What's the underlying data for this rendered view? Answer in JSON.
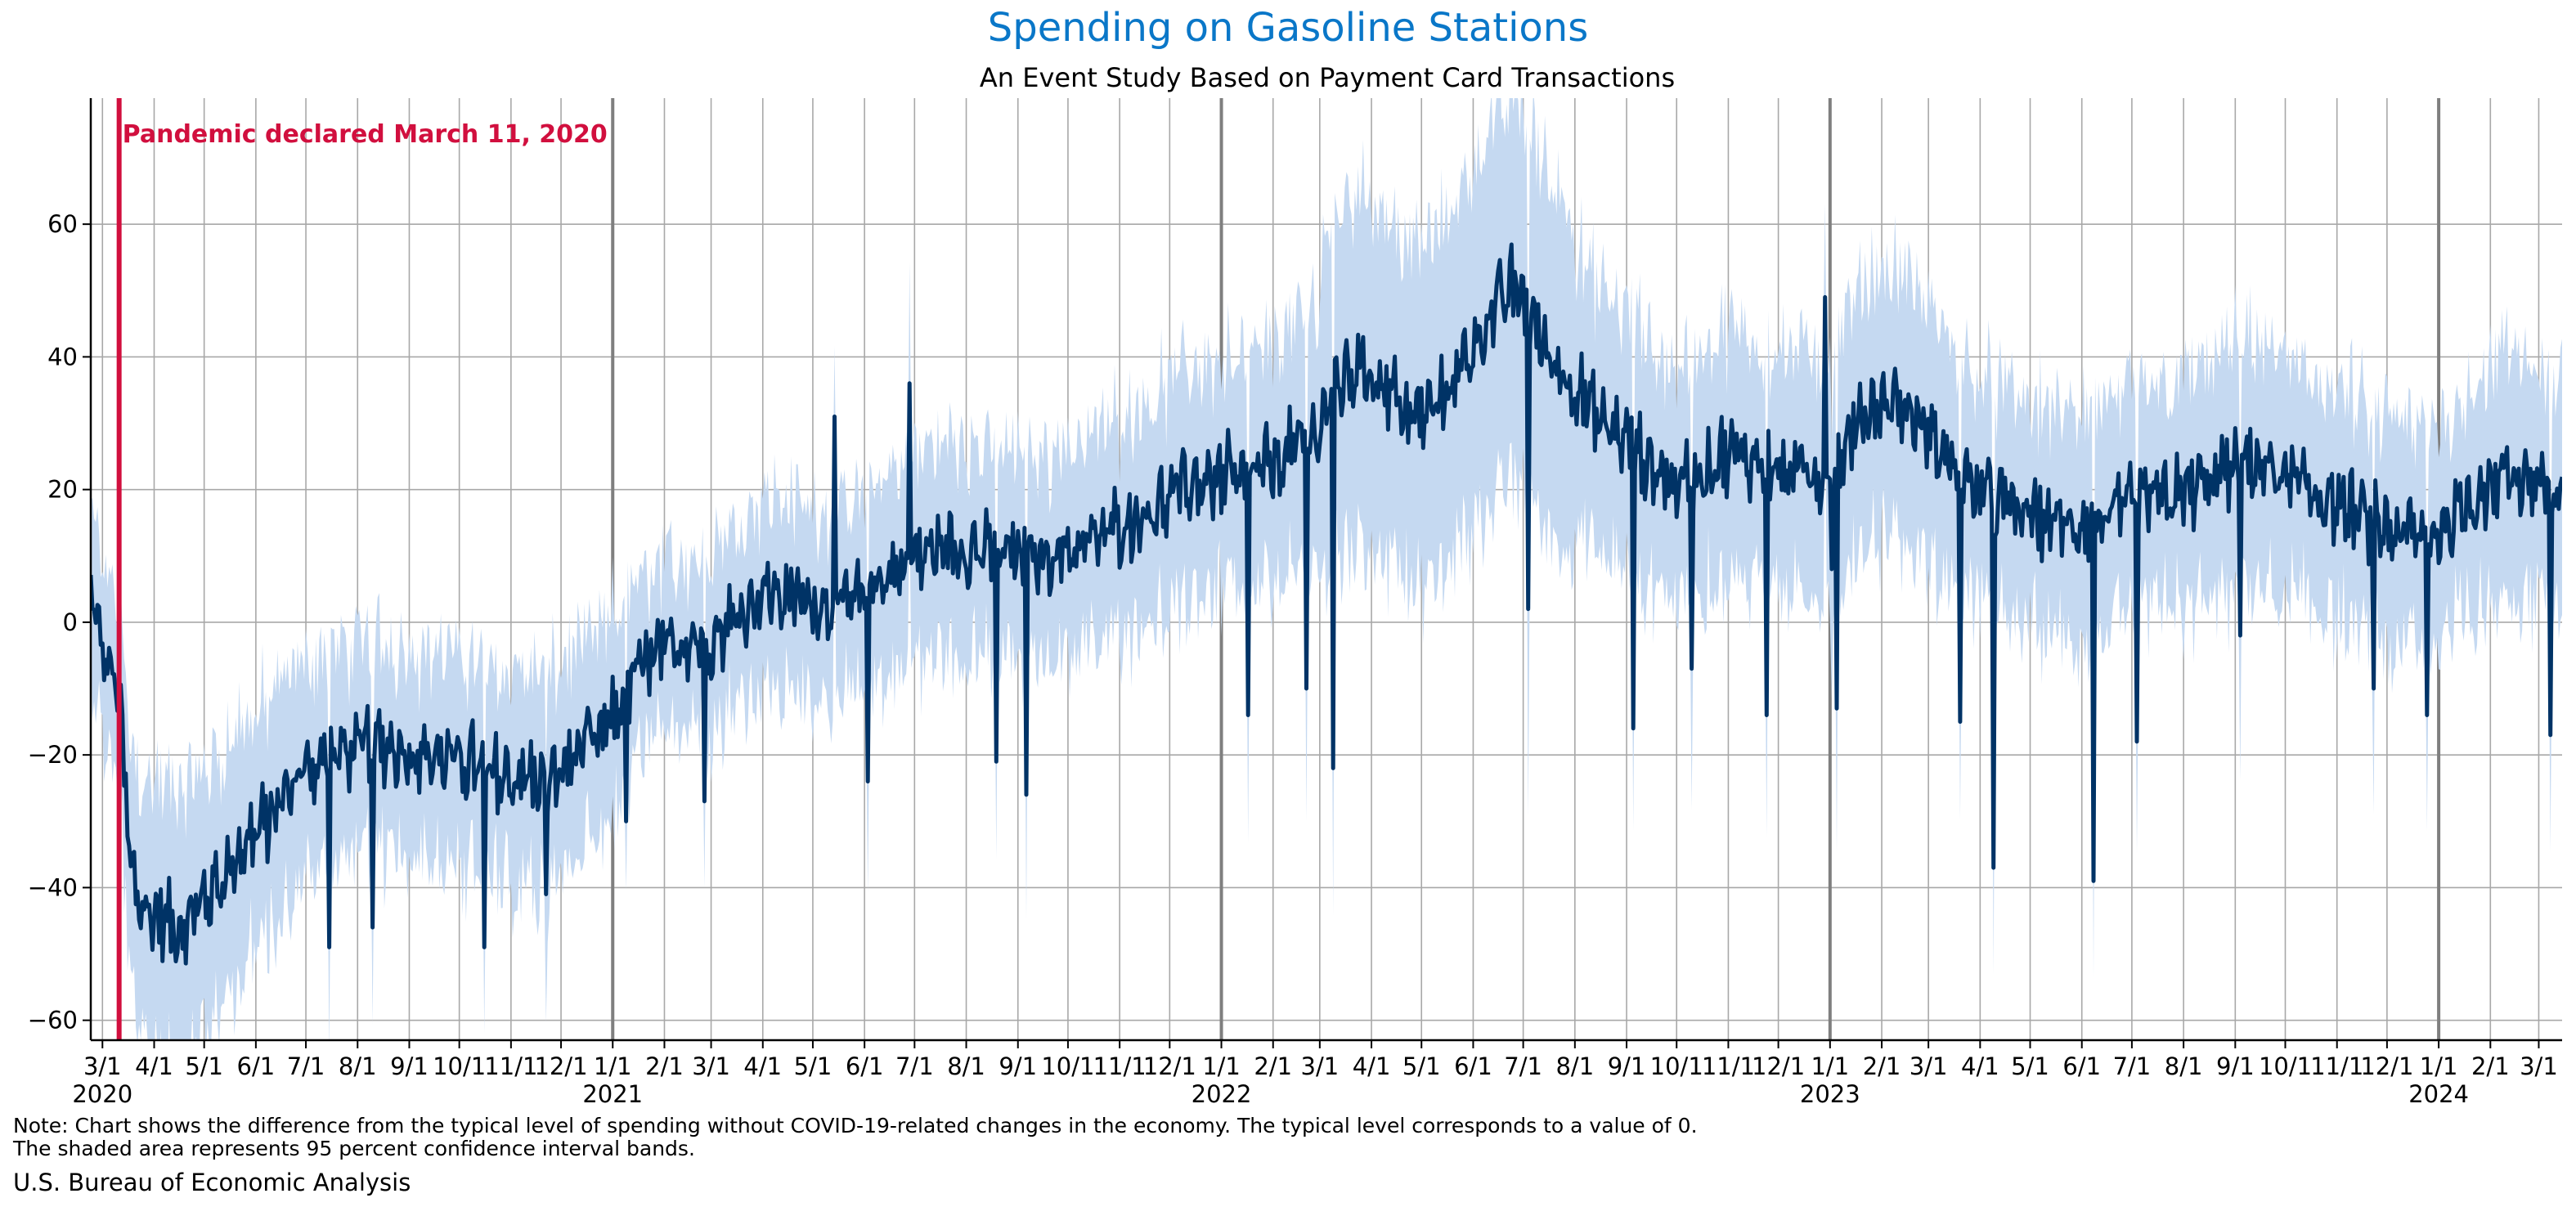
{
  "colors": {
    "title": "#0a77c8",
    "line": "#003366",
    "band": "#c5d9f1",
    "pandemic": "#d10f3e",
    "grid": "#a8a8a8",
    "year_line": "#7f7f7f"
  },
  "chart_data": {
    "type": "line",
    "title": "Spending on Gasoline Stations",
    "subtitle": "An Event Study Based on Payment Card Transactions",
    "xlabel": "",
    "ylabel": "",
    "x_range": [
      "2020-02-23",
      "2024-03-15"
    ],
    "ylim": [
      -63,
      79
    ],
    "yticks": [
      -60,
      -40,
      -20,
      0,
      20,
      40,
      60
    ],
    "grid": true,
    "x_tick_labels": [
      "3/1",
      "4/1",
      "5/1",
      "6/1",
      "7/1",
      "8/1",
      "9/1",
      "10/1",
      "11/1",
      "12/1",
      "1/1",
      "2/1",
      "3/1",
      "4/1",
      "5/1",
      "6/1",
      "7/1",
      "8/1",
      "9/1",
      "10/1",
      "11/1",
      "12/1",
      "1/1",
      "2/1",
      "3/1",
      "4/1",
      "5/1",
      "6/1",
      "7/1",
      "8/1",
      "9/1",
      "10/1",
      "11/1",
      "12/1",
      "1/1",
      "2/1",
      "3/1",
      "4/1",
      "5/1",
      "6/1",
      "7/1",
      "8/1",
      "9/1",
      "10/1",
      "11/1",
      "12/1",
      "1/1",
      "2/1",
      "3/1"
    ],
    "year_labels": [
      {
        "date": "2020-03-01",
        "label": "2020"
      },
      {
        "date": "2021-01-01",
        "label": "2021"
      },
      {
        "date": "2022-01-01",
        "label": "2022"
      },
      {
        "date": "2023-01-01",
        "label": "2023"
      },
      {
        "date": "2024-01-01",
        "label": "2024"
      }
    ],
    "event": {
      "date": "2020-03-11",
      "label": "Pandemic declared March 11, 2020"
    },
    "confidence_band": "95 percent confidence interval",
    "series": [
      {
        "name": "",
        "points": [
          [
            "2020-02-23",
            5
          ],
          [
            "2020-03-01",
            -5
          ],
          [
            "2020-03-08",
            -9
          ],
          [
            "2020-03-11",
            -12
          ],
          [
            "2020-03-18",
            -38
          ],
          [
            "2020-03-25",
            -44
          ],
          [
            "2020-04-05",
            -45
          ],
          [
            "2020-04-15",
            -47
          ],
          [
            "2020-04-25",
            -44
          ],
          [
            "2020-05-10",
            -40
          ],
          [
            "2020-05-25",
            -34
          ],
          [
            "2020-06-10",
            -30
          ],
          [
            "2020-06-25",
            -24
          ],
          [
            "2020-07-10",
            -21
          ],
          [
            "2020-07-25",
            -20
          ],
          [
            "2020-08-15",
            -19
          ],
          [
            "2020-09-01",
            -20
          ],
          [
            "2020-09-20",
            -21
          ],
          [
            "2020-10-10",
            -22
          ],
          [
            "2020-10-25",
            -24
          ],
          [
            "2020-11-10",
            -24
          ],
          [
            "2020-11-25",
            -25
          ],
          [
            "2020-12-10",
            -20
          ],
          [
            "2020-12-25",
            -18
          ],
          [
            "2021-01-01",
            -15
          ],
          [
            "2021-01-15",
            -8
          ],
          [
            "2021-02-01",
            -5
          ],
          [
            "2021-02-15",
            -3
          ],
          [
            "2021-03-01",
            -3
          ],
          [
            "2021-03-15",
            0
          ],
          [
            "2021-04-01",
            4
          ],
          [
            "2021-04-20",
            3
          ],
          [
            "2021-05-10",
            2
          ],
          [
            "2021-05-25",
            2
          ],
          [
            "2021-06-10",
            6
          ],
          [
            "2021-06-25",
            8
          ],
          [
            "2021-07-10",
            10
          ],
          [
            "2021-07-25",
            11
          ],
          [
            "2021-08-10",
            10
          ],
          [
            "2021-08-25",
            10
          ],
          [
            "2021-09-10",
            9
          ],
          [
            "2021-09-25",
            10
          ],
          [
            "2021-10-10",
            11
          ],
          [
            "2021-10-25",
            13
          ],
          [
            "2021-11-10",
            15
          ],
          [
            "2021-11-25",
            17
          ],
          [
            "2021-12-10",
            20
          ],
          [
            "2021-12-25",
            21
          ],
          [
            "2022-01-10",
            20
          ],
          [
            "2022-01-25",
            22
          ],
          [
            "2022-02-10",
            25
          ],
          [
            "2022-02-25",
            27
          ],
          [
            "2022-03-10",
            35
          ],
          [
            "2022-03-25",
            38
          ],
          [
            "2022-04-10",
            35
          ],
          [
            "2022-04-25",
            30
          ],
          [
            "2022-05-10",
            32
          ],
          [
            "2022-05-25",
            38
          ],
          [
            "2022-06-10",
            45
          ],
          [
            "2022-06-25",
            50
          ],
          [
            "2022-07-01",
            48
          ],
          [
            "2022-07-15",
            40
          ],
          [
            "2022-08-01",
            35
          ],
          [
            "2022-08-15",
            30
          ],
          [
            "2022-09-01",
            27
          ],
          [
            "2022-09-15",
            23
          ],
          [
            "2022-10-01",
            20
          ],
          [
            "2022-10-15",
            22
          ],
          [
            "2022-11-01",
            25
          ],
          [
            "2022-11-15",
            24
          ],
          [
            "2022-12-01",
            22
          ],
          [
            "2022-12-15",
            22
          ],
          [
            "2023-01-01",
            22
          ],
          [
            "2023-01-10",
            26
          ],
          [
            "2023-01-25",
            32
          ],
          [
            "2023-02-10",
            33
          ],
          [
            "2023-02-25",
            29
          ],
          [
            "2023-03-10",
            25
          ],
          [
            "2023-03-25",
            20
          ],
          [
            "2023-04-10",
            18
          ],
          [
            "2023-04-25",
            16
          ],
          [
            "2023-05-10",
            15
          ],
          [
            "2023-05-25",
            14
          ],
          [
            "2023-06-10",
            15
          ],
          [
            "2023-06-25",
            16
          ],
          [
            "2023-07-10",
            18
          ],
          [
            "2023-07-25",
            18
          ],
          [
            "2023-08-10",
            20
          ],
          [
            "2023-08-25",
            22
          ],
          [
            "2023-09-10",
            24
          ],
          [
            "2023-09-25",
            22
          ],
          [
            "2023-10-10",
            20
          ],
          [
            "2023-10-25",
            18
          ],
          [
            "2023-11-10",
            16
          ],
          [
            "2023-11-25",
            14
          ],
          [
            "2023-12-10",
            13
          ],
          [
            "2023-12-25",
            12
          ],
          [
            "2024-01-10",
            15
          ],
          [
            "2024-01-25",
            19
          ],
          [
            "2024-02-10",
            22
          ],
          [
            "2024-02-25",
            21
          ],
          [
            "2024-03-05",
            20
          ],
          [
            "2024-03-15",
            18
          ]
        ]
      }
    ],
    "dips": [
      [
        "2020-07-15",
        -49
      ],
      [
        "2020-08-10",
        -46
      ],
      [
        "2020-10-16",
        -49
      ],
      [
        "2020-11-22",
        -41
      ],
      [
        "2021-01-09",
        -30
      ],
      [
        "2021-02-25",
        -27
      ],
      [
        "2021-06-03",
        -24
      ],
      [
        "2021-08-19",
        -21
      ],
      [
        "2021-09-06",
        -26
      ],
      [
        "2022-01-17",
        -14
      ],
      [
        "2022-02-21",
        -10
      ],
      [
        "2022-03-09",
        -22
      ],
      [
        "2022-07-04",
        2
      ],
      [
        "2022-09-05",
        -16
      ],
      [
        "2022-10-10",
        -7
      ],
      [
        "2022-11-24",
        -14
      ],
      [
        "2023-01-05",
        -13
      ],
      [
        "2023-03-20",
        -15
      ],
      [
        "2023-04-09",
        -37
      ],
      [
        "2023-06-08",
        -39
      ],
      [
        "2023-07-04",
        -18
      ],
      [
        "2023-09-04",
        -2
      ],
      [
        "2023-11-23",
        -10
      ],
      [
        "2023-12-25",
        -14
      ],
      [
        "2024-03-08",
        -17
      ]
    ],
    "spikes": [
      [
        "2021-05-14",
        31
      ],
      [
        "2021-06-28",
        36
      ],
      [
        "2022-01-05",
        29
      ],
      [
        "2022-12-29",
        49
      ],
      [
        "2023-01-02",
        8
      ]
    ]
  },
  "footer": {
    "note_line1": "Note: Chart shows the difference from the typical level of spending without COVID-19-related changes in the economy. The typical level corresponds to a value of 0.",
    "note_line2": "The shaded area represents 95 percent confidence interval bands.",
    "source": "U.S. Bureau of Economic Analysis"
  }
}
